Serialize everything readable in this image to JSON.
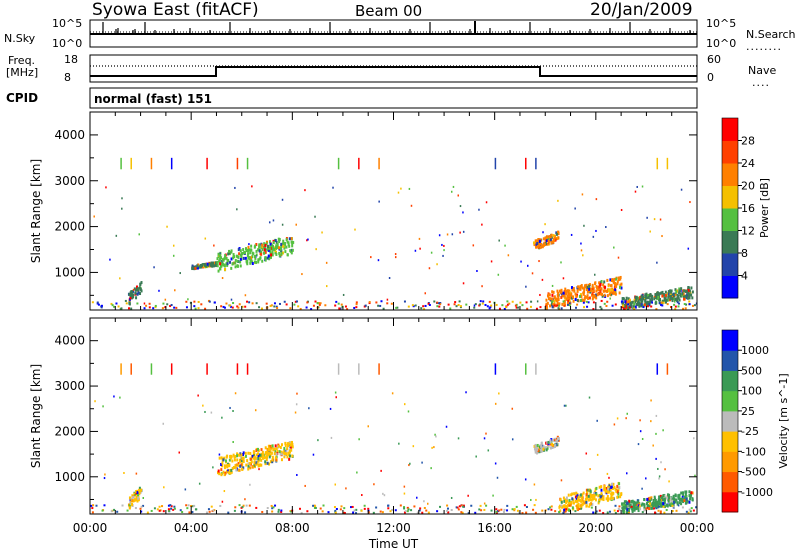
{
  "header": {
    "station": "Syowa East (fitACF)",
    "beam": "Beam 00",
    "date": "20/Jan/2009"
  },
  "strip_labels": {
    "nsky": "N.Sky",
    "nsky_top": "10^5",
    "nsky_bottom": "10^0",
    "nsearch": "N.Search",
    "nsearch_top": "10^5",
    "nsearch_bottom": "10^0",
    "freq_line1": "Freq.",
    "freq_line2": "[MHz]",
    "freq_top": "18",
    "freq_bottom": "8",
    "nave": "Nave",
    "nave_top": "60",
    "nave_bottom": "0",
    "cpid": "CPID",
    "cpid_value": "normal (fast) 151"
  },
  "colors": {
    "power": [
      "#0000ff",
      "#2244aa",
      "#3a7a55",
      "#55c040",
      "#f5c000",
      "#ff8000",
      "#ff4000",
      "#ff0000"
    ],
    "velocity": [
      "#ff0000",
      "#ff5a00",
      "#ff9a00",
      "#ffc000",
      "#bbbbbb",
      "#55c040",
      "#3a9a55",
      "#2255aa",
      "#0000ff"
    ]
  },
  "chart_data": [
    {
      "type": "heatmap",
      "panel": "power",
      "ylabel": "Slant Range [km]",
      "ylim": [
        180,
        4500
      ],
      "yticks": [
        1000,
        2000,
        3000,
        4000
      ],
      "colorbar_label": "Power [dB]",
      "colorbar_ticks": [
        "4",
        "8",
        "12",
        "16",
        "20",
        "24",
        "28"
      ],
      "clim": [
        0,
        32
      ],
      "features": [
        {
          "t": [
            1.5,
            2.0
          ],
          "r": [
            300,
            800
          ],
          "value": 8
        },
        {
          "t": [
            4.0,
            5.0
          ],
          "r": [
            1100,
            1250
          ],
          "value": 8
        },
        {
          "t": [
            5.0,
            8.0
          ],
          "r": [
            1000,
            1800
          ],
          "value": 14
        },
        {
          "t": [
            17.5,
            18.5
          ],
          "r": [
            1500,
            1900
          ],
          "value": 20
        },
        {
          "t": [
            18.0,
            21.0
          ],
          "r": [
            200,
            900
          ],
          "value": 22
        },
        {
          "t": [
            21.0,
            23.8
          ],
          "r": [
            200,
            700
          ],
          "value": 10
        }
      ]
    },
    {
      "type": "heatmap",
      "panel": "velocity",
      "ylabel": "Slant Range [km]",
      "ylim": [
        180,
        4500
      ],
      "yticks": [
        1000,
        2000,
        3000,
        4000
      ],
      "colorbar_label": "Velocity [m s^-1]",
      "colorbar_ticks": [
        "1000",
        "500",
        "100",
        "25",
        "-25",
        "-100",
        "-500",
        "-1000"
      ],
      "clim": [
        -1200,
        1200
      ],
      "xlabel": "Time UT",
      "xticks": [
        "00:00",
        "04:00",
        "08:00",
        "12:00",
        "16:00",
        "20:00",
        "00:00"
      ],
      "xlim": [
        0,
        24
      ],
      "features": [
        {
          "t": [
            1.5,
            2.0
          ],
          "r": [
            300,
            800
          ],
          "value": -150
        },
        {
          "t": [
            5.0,
            8.0
          ],
          "r": [
            1000,
            1800
          ],
          "value": -300
        },
        {
          "t": [
            17.5,
            18.5
          ],
          "r": [
            1500,
            1900
          ],
          "value": 100
        },
        {
          "t": [
            18.5,
            21.0
          ],
          "r": [
            200,
            900
          ],
          "value": -200
        },
        {
          "t": [
            21.0,
            23.8
          ],
          "r": [
            200,
            700
          ],
          "value": 400
        }
      ]
    }
  ]
}
